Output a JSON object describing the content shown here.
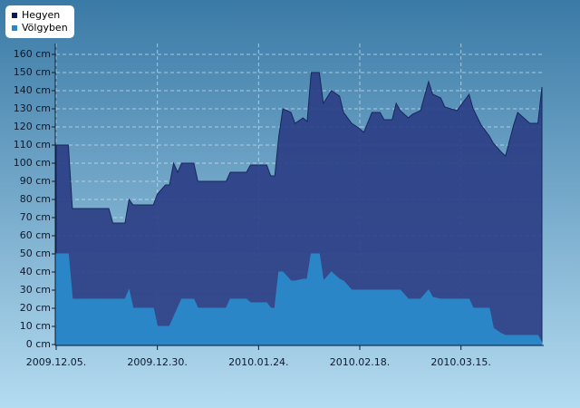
{
  "chart_data": {
    "type": "area",
    "x": [
      "2009.12.05.",
      "2009.12.08.",
      "2009.12.09.",
      "2009.12.18.",
      "2009.12.19.",
      "2009.12.22.",
      "2009.12.23.",
      "2009.12.24.",
      "2009.12.29.",
      "2009.12.30.",
      "2010.01.01.",
      "2010.01.02.",
      "2010.01.03.",
      "2010.01.04.",
      "2010.01.05.",
      "2010.01.08.",
      "2010.01.09.",
      "2010.01.16.",
      "2010.01.17.",
      "2010.01.21.",
      "2010.01.22.",
      "2010.01.26.",
      "2010.01.27.",
      "2010.01.28.",
      "2010.01.29.",
      "2010.01.30.",
      "2010.02.01.",
      "2010.02.02.",
      "2010.02.04.",
      "2010.02.05.",
      "2010.02.06.",
      "2010.02.08.",
      "2010.02.09.",
      "2010.02.11.",
      "2010.02.13.",
      "2010.02.14.",
      "2010.02.16.",
      "2010.02.18.",
      "2010.02.19.",
      "2010.02.21.",
      "2010.02.23.",
      "2010.02.24.",
      "2010.02.26.",
      "2010.02.27.",
      "2010.02.28.",
      "2010.03.02.",
      "2010.03.03.",
      "2010.03.05.",
      "2010.03.07.",
      "2010.03.08.",
      "2010.03.10.",
      "2010.03.11.",
      "2010.03.14.",
      "2010.03.15.",
      "2010.03.17.",
      "2010.03.18.",
      "2010.03.20.",
      "2010.03.22.",
      "2010.03.23.",
      "2010.03.25.",
      "2010.03.26.",
      "2010.03.28.",
      "2010.03.29.",
      "2010.03.31.",
      "2010.04.01.",
      "2010.04.03.",
      "2010.04.04."
    ],
    "series": [
      {
        "name": "Hegyen",
        "color": "#2c3f86",
        "values": [
          110,
          110,
          75,
          75,
          67,
          67,
          80,
          77,
          77,
          83,
          88,
          88,
          100,
          95,
          100,
          100,
          90,
          90,
          95,
          95,
          99,
          99,
          93,
          93,
          115,
          130,
          128,
          122,
          125,
          123,
          150,
          150,
          133,
          140,
          137,
          128,
          122,
          119,
          117,
          128,
          128,
          124,
          124,
          133,
          129,
          125,
          127,
          129,
          145,
          138,
          136,
          131,
          129,
          132,
          138,
          130,
          121,
          115,
          111,
          106,
          104,
          121,
          128,
          124,
          122,
          122,
          142
        ]
      },
      {
        "name": "Völgyben",
        "color": "#2b86c8",
        "values": [
          50,
          50,
          25,
          25,
          25,
          25,
          30,
          20,
          20,
          10,
          10,
          10,
          15,
          20,
          25,
          25,
          20,
          20,
          25,
          25,
          23,
          23,
          20,
          20,
          40,
          40,
          35,
          35,
          36,
          36,
          50,
          50,
          35,
          40,
          36,
          35,
          30,
          30,
          30,
          30,
          30,
          30,
          30,
          30,
          30,
          25,
          25,
          25,
          30,
          26,
          25,
          25,
          25,
          25,
          25,
          20,
          20,
          20,
          9,
          6,
          5,
          5,
          5,
          5,
          5,
          5,
          1
        ]
      }
    ],
    "xlim": [
      "2009.12.05.",
      "2010.04.04."
    ],
    "xticks": [
      "2009.12.05.",
      "2009.12.30.",
      "2010.01.24.",
      "2010.02.18.",
      "2010.03.15."
    ],
    "ylim": [
      0,
      160
    ],
    "yticks": [
      {
        "value": 0,
        "label": "0 cm"
      },
      {
        "value": 10,
        "label": "10 cm"
      },
      {
        "value": 20,
        "label": "20 cm"
      },
      {
        "value": 30,
        "label": "30 cm"
      },
      {
        "value": 40,
        "label": "40 cm"
      },
      {
        "value": 50,
        "label": "50 cm"
      },
      {
        "value": 60,
        "label": "60 cm"
      },
      {
        "value": 70,
        "label": "70 cm"
      },
      {
        "value": 80,
        "label": "80 cm"
      },
      {
        "value": 90,
        "label": "90 cm"
      },
      {
        "value": 100,
        "label": "100 cm"
      },
      {
        "value": 110,
        "label": "110 cm"
      },
      {
        "value": 120,
        "label": "120 cm"
      },
      {
        "value": 130,
        "label": "130 cm"
      },
      {
        "value": 140,
        "label": "140 cm"
      },
      {
        "value": 150,
        "label": "150 cm"
      },
      {
        "value": 160,
        "label": "160 cm"
      }
    ],
    "grid": true
  }
}
